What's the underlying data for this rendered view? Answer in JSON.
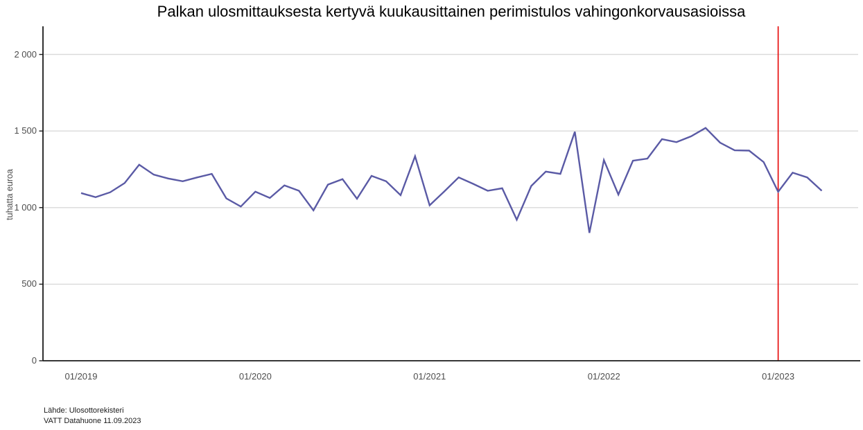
{
  "title": "Palkan ulosmittauksesta kertyvä kuukausittainen perimistulos vahingonkorvausasioissa",
  "caption": {
    "line1": "Lähde: Ulosottorekisteri",
    "line2": "VATT Datahuone 11.09.2023"
  },
  "colors": {
    "line": "#5a5aa5",
    "vline": "#e60000",
    "grid": "#d9d9d9",
    "axis": "#1a1a1a",
    "tick_text": "#4d4d4d"
  },
  "chart_data": {
    "type": "line",
    "title": "Palkan ulosmittauksesta kertyvä kuukausittainen perimistulos vahingonkorvausasioissa",
    "xlabel": "",
    "ylabel": "tuhatta euroa",
    "ylim": [
      0,
      2200
    ],
    "grid": "horizontal",
    "legend": "none",
    "x": [
      "01/2019",
      "02/2019",
      "03/2019",
      "04/2019",
      "05/2019",
      "06/2019",
      "07/2019",
      "08/2019",
      "09/2019",
      "10/2019",
      "11/2019",
      "12/2019",
      "01/2020",
      "02/2020",
      "03/2020",
      "04/2020",
      "05/2020",
      "06/2020",
      "07/2020",
      "08/2020",
      "09/2020",
      "10/2020",
      "11/2020",
      "12/2020",
      "01/2021",
      "02/2021",
      "03/2021",
      "04/2021",
      "05/2021",
      "06/2021",
      "07/2021",
      "08/2021",
      "09/2021",
      "10/2021",
      "11/2021",
      "12/2021",
      "01/2022",
      "02/2022",
      "03/2022",
      "04/2022",
      "05/2022",
      "06/2022",
      "07/2022",
      "08/2022",
      "09/2022",
      "10/2022",
      "11/2022",
      "12/2022",
      "01/2023",
      "02/2023",
      "03/2023",
      "04/2023"
    ],
    "values": [
      1095,
      1068,
      1100,
      1160,
      1280,
      1215,
      1190,
      1172,
      1197,
      1220,
      1060,
      1007,
      1104,
      1063,
      1145,
      1110,
      982,
      1150,
      1186,
      1058,
      1207,
      1172,
      1081,
      1335,
      1015,
      1105,
      1197,
      1155,
      1110,
      1126,
      921,
      1141,
      1235,
      1220,
      1495,
      835,
      1310,
      1085,
      1306,
      1320,
      1447,
      1427,
      1465,
      1520,
      1424,
      1374,
      1372,
      1297,
      1103,
      1228,
      1197,
      1110
    ],
    "y_ticks": [
      {
        "value": 0,
        "label": "0"
      },
      {
        "value": 500,
        "label": "500"
      },
      {
        "value": 1000,
        "label": "1 000"
      },
      {
        "value": 1500,
        "label": "1 500"
      },
      {
        "value": 2000,
        "label": "2 000"
      }
    ],
    "x_ticks": [
      "01/2019",
      "01/2020",
      "01/2021",
      "01/2022",
      "01/2023"
    ],
    "vline": {
      "x": "01/2023"
    }
  }
}
